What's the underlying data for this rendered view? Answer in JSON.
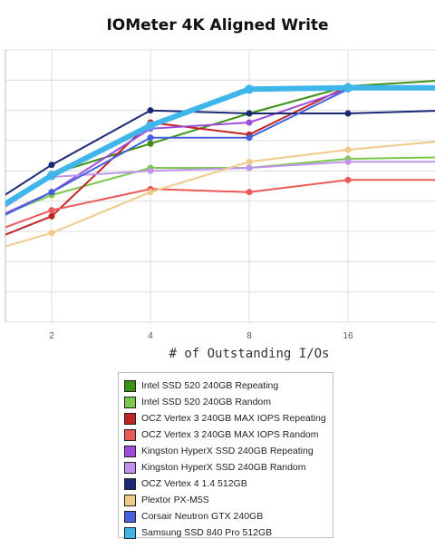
{
  "chart_data": {
    "type": "line",
    "title": "IOMeter 4K Aligned Write",
    "xlabel": "# of Outstanding I/Os",
    "ylabel": "",
    "x_scale": "log2",
    "x_ticks": [
      "2",
      "4",
      "8",
      "16"
    ],
    "x": [
      1,
      2,
      4,
      8,
      16,
      32
    ],
    "y_range": [
      0,
      9
    ],
    "grid": true,
    "legend_position": "bottom",
    "series": [
      {
        "name": "Intel SSD 520 240GB Repeating",
        "color": "#3b8f12",
        "values": [
          2.6,
          4.9,
          5.9,
          6.9,
          7.8,
          8.0
        ]
      },
      {
        "name": "Intel SSD 520 240GB Random",
        "color": "#7cc84e",
        "values": [
          2.9,
          4.2,
          5.1,
          5.1,
          5.4,
          5.45
        ]
      },
      {
        "name": "OCZ Vertex 3 240GB MAX IOPS Repeating",
        "color": "#c02322",
        "values": [
          2.2,
          3.5,
          6.6,
          6.2,
          7.8,
          7.8
        ]
      },
      {
        "name": "OCZ Vertex 3 240GB MAX IOPS Random",
        "color": "#ea5a56",
        "values": [
          2.5,
          3.7,
          4.4,
          4.3,
          4.7,
          4.7
        ]
      },
      {
        "name": "Kingston HyperX SSD 240GB Repeating",
        "color": "#9c4ddb",
        "values": [
          2.8,
          4.3,
          6.4,
          6.6,
          7.7,
          7.8
        ]
      },
      {
        "name": "Kingston HyperX SSD 240GB Random",
        "color": "#bf93ee",
        "values": [
          2.7,
          4.8,
          5.0,
          5.1,
          5.3,
          5.3
        ]
      },
      {
        "name": "OCZ Vertex 4 1.4 512GB",
        "color": "#1b2875",
        "values": [
          3.1,
          5.2,
          7.0,
          6.9,
          6.9,
          7.0
        ]
      },
      {
        "name": "Plextor PX-M5S",
        "color": "#f0c98b",
        "values": [
          2.0,
          2.95,
          4.3,
          5.3,
          5.7,
          6.0
        ]
      },
      {
        "name": "Corsair Neutron GTX 240GB",
        "color": "#4462dd",
        "values": [
          2.7,
          4.3,
          6.1,
          6.1,
          7.7,
          7.7
        ]
      },
      {
        "name": "Samsung SSD 840 Pro 512GB",
        "color": "#3fb6ea",
        "values": [
          2.85,
          4.85,
          6.5,
          7.7,
          7.75,
          7.75
        ]
      }
    ]
  }
}
